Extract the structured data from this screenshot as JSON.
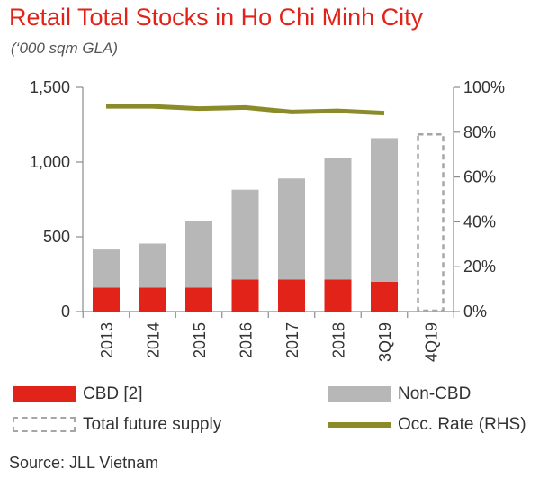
{
  "header": {
    "title": "Retail Total Stocks in Ho Chi Minh City",
    "subtitle": "(‘000 sqm GLA)"
  },
  "source": "Source: JLL Vietnam",
  "colors": {
    "title": "#e2231a",
    "cbd": "#e2231a",
    "non_cbd": "#b7b7b7",
    "future": "#a6a6a6",
    "occ_line": "#8b8b2a",
    "axis": "#8c8c8c"
  },
  "chart_data": {
    "type": "bar",
    "stacked": true,
    "categories": [
      "2013",
      "2014",
      "2015",
      "2016",
      "2017",
      "2018",
      "3Q19",
      "4Q19"
    ],
    "series": [
      {
        "name": "CBD [2]",
        "kind": "bar",
        "values": [
          160,
          160,
          160,
          215,
          215,
          215,
          200,
          null
        ]
      },
      {
        "name": "Non-CBD",
        "kind": "bar",
        "values": [
          255,
          295,
          445,
          600,
          675,
          815,
          960,
          null
        ]
      },
      {
        "name": "Total future supply",
        "kind": "bar-dashed",
        "values": [
          null,
          null,
          null,
          null,
          null,
          null,
          null,
          1185
        ]
      },
      {
        "name": "Occ. Rate (RHS)",
        "kind": "line",
        "axis": "right",
        "values": [
          91.5,
          91.5,
          90.5,
          91,
          89,
          89.5,
          88.5,
          null
        ]
      }
    ],
    "y_left": {
      "ylim": [
        0,
        1500
      ],
      "ticks": [
        0,
        500,
        1000,
        1500
      ],
      "tick_labels": [
        "0",
        "500",
        "1,000",
        "1,500"
      ]
    },
    "y_right": {
      "ylim": [
        0,
        100
      ],
      "ticks": [
        0,
        20,
        40,
        60,
        80,
        100
      ],
      "tick_labels": [
        "0%",
        "20%",
        "40%",
        "60%",
        "80%",
        "100%"
      ]
    },
    "xlabel": "",
    "ylabel": "",
    "grid": false,
    "legend_position": "bottom"
  }
}
